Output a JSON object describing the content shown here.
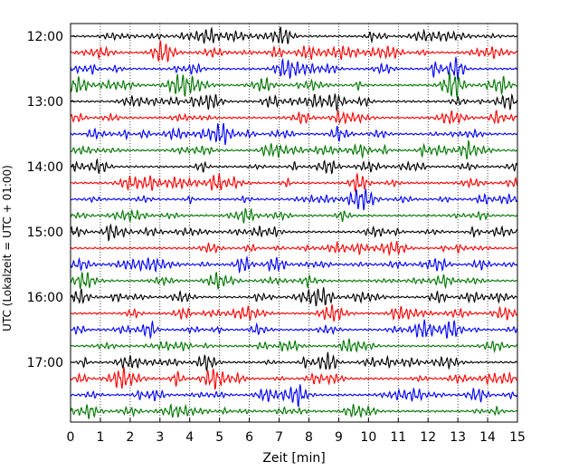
{
  "chart_data": {
    "type": "line",
    "title": "",
    "xlabel": "Zeit  [min]",
    "ylabel": "UTC (Lokalzeit = UTC + 01:00)",
    "xlim": [
      0,
      15
    ],
    "x_ticks": [
      "0",
      "1",
      "2",
      "3",
      "4",
      "5",
      "6",
      "7",
      "8",
      "9",
      "10",
      "11",
      "12",
      "13",
      "14",
      "15"
    ],
    "y_ticks": [
      "12:00",
      "13:00",
      "14:00",
      "15:00",
      "16:00",
      "17:00"
    ],
    "grid": "vertical dotted",
    "row_count": 24,
    "row_start_time": "12:00",
    "row_interval_minutes": 15,
    "colors": [
      "#000000",
      "#ff0000",
      "#0000ff",
      "#007700"
    ]
  }
}
